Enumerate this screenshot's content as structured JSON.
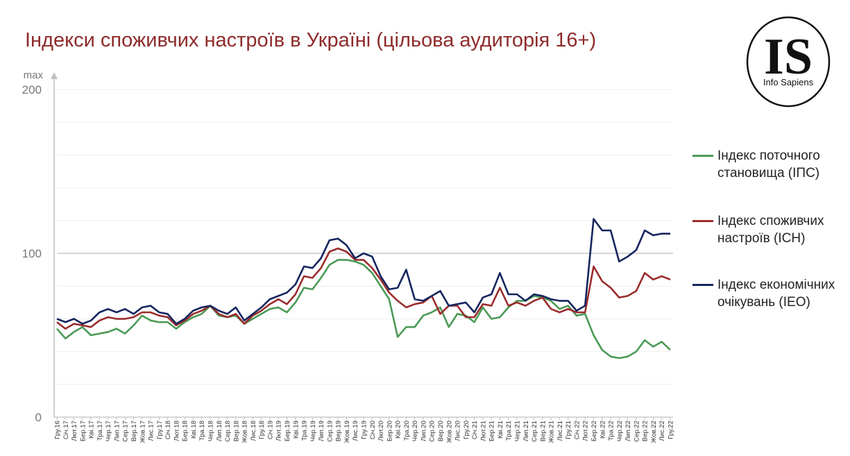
{
  "title": "Індекси споживчих настроїв в Україні (цільова аудиторія 16+)",
  "logo": {
    "mark": "IS",
    "name": "Info Sapiens"
  },
  "colors": {
    "ips": "#4a9a56",
    "ich": "#9b2c2c",
    "ieo": "#15255e",
    "grid": "#dcdcdc",
    "axis": "#bfbfbf"
  },
  "legend": [
    {
      "key": "ips",
      "label": "Індекс поточного становища (ІПС)"
    },
    {
      "key": "ich",
      "label": "Індекс споживчих настроїв (ІСН)"
    },
    {
      "key": "ieo",
      "label": "Індекс економічних очікувань (ІЕО)"
    }
  ],
  "chart_data": {
    "type": "line",
    "title": "Індекси споживчих настроїв в Україні (цільова аудиторія 16+)",
    "ylim": [
      0,
      200
    ],
    "yticks": [
      "0",
      "100",
      "200"
    ],
    "ymax_label": "max",
    "grid": true,
    "legend_position": "right",
    "x": [
      "Гру.16",
      "Січ.17",
      "Лют.17",
      "Бер.17",
      "Кві.17",
      "Тра.17",
      "Чер.17",
      "Лип.17",
      "Сер.17",
      "Вер.17",
      "Жов.17",
      "Лис.17",
      "Гру.17",
      "Січ.18",
      "Лют.18",
      "Бер.18",
      "Кві.18",
      "Тра.18",
      "Чер.18",
      "Лип.18",
      "Сер.18",
      "Вер.18",
      "Жов.18",
      "Лис.18",
      "Гру.18",
      "Січ.19",
      "Лют.19",
      "Бер.19",
      "Кві.19",
      "Тра.19",
      "Чер.19",
      "Лип.19",
      "Сер.19",
      "Вер.19",
      "Жов.19",
      "Лис.19",
      "Гру.19",
      "Січ.20",
      "Лют.20",
      "Бер.20",
      "Кві.20",
      "Тра.20",
      "Чер.20",
      "Лип.20",
      "Сер.20",
      "Вер.20",
      "Жов.20",
      "Лис.20",
      "Гру.20",
      "Січ.21",
      "Лют.21",
      "Бер.21",
      "Кві.21",
      "Тра.21",
      "Чер.21",
      "Лип.21",
      "Сер.21",
      "Вер.21",
      "Жов.21",
      "Лис.21",
      "Гру.21",
      "Січ.22",
      "Лют.22",
      "Бер.22",
      "Кві.22",
      "Тра.22",
      "Чер.22",
      "Лип.22",
      "Сер.22",
      "Вер.22",
      "Жов.22",
      "Лис.22",
      "Гру.22"
    ],
    "x_tick_labels": [
      "Гру.16",
      "Січ.17",
      "Лют.17",
      "Бер.17",
      "Кві.17",
      "Тра.17",
      "Чер.17",
      "Лип.17",
      "Сер.17",
      "Вер.17",
      "Жов.17",
      "Лис.17",
      "Гру.17",
      "Січ.18",
      "Лют.18",
      "Бер.18",
      "Кві.18",
      "Тра.18",
      "Чер.18",
      "Лип.18",
      "Сер.18",
      "Вер.18",
      "Жов.18",
      "Лис.18",
      "Гру.18",
      "Січ.19",
      "Лют.19",
      "Бер.19",
      "Кві.19",
      "Тра.19",
      "Чер.19",
      "Лип.19",
      "Сер.19",
      "Вер.19",
      "Жов.19",
      "Лис.19",
      "Гру.19",
      "Січ.20",
      "Лют.20",
      "Бер.20",
      "Кві.20",
      "Тра.20",
      "Чер.20",
      "Лип.20",
      "Сер.20",
      "Вер.20",
      "Жов.20",
      "Лис.20",
      "Гру.20",
      "Січ.21",
      "Лют.21",
      "Бер.21",
      "Кві.21",
      "Тра.21",
      "Чер.21",
      "Лип.21",
      "Сер.21",
      "Вер.21",
      "Жов.21",
      "Лис.21",
      "Гру.21",
      "Січ.22",
      "Лют.22",
      "Бер.22",
      "Кві.22",
      "Тра.22",
      "Чер.22",
      "Лип.22",
      "Сер.22",
      "Вер.22",
      "Жов.22",
      "Лис.22",
      "Гру.22"
    ],
    "series": [
      {
        "key": "ips",
        "name": "Індекс поточного становища (ІПС)",
        "values": [
          54,
          48,
          52,
          55,
          50,
          51,
          52,
          54,
          51,
          56,
          62,
          59,
          58,
          58,
          54,
          58,
          61,
          63,
          68,
          62,
          61,
          62,
          57,
          60,
          63,
          66,
          67,
          64,
          70,
          79,
          78,
          85,
          93,
          96,
          96,
          95,
          93,
          88,
          80,
          72,
          49,
          55,
          55,
          62,
          64,
          67,
          55,
          63,
          62,
          58,
          67,
          60,
          61,
          67,
          71,
          71,
          74,
          73,
          71,
          66,
          68,
          62,
          63,
          50,
          41,
          37,
          36,
          37,
          40,
          47,
          43,
          46,
          41
        ]
      },
      {
        "key": "ich",
        "name": "Індекс споживчих настроїв (ІСН)",
        "values": [
          58,
          54,
          57,
          56,
          55,
          59,
          61,
          60,
          60,
          61,
          64,
          64,
          62,
          61,
          56,
          59,
          63,
          65,
          68,
          63,
          61,
          63,
          57,
          62,
          65,
          69,
          72,
          69,
          75,
          86,
          85,
          91,
          101,
          103,
          101,
          96,
          96,
          91,
          84,
          76,
          71,
          67,
          69,
          70,
          74,
          63,
          68,
          68,
          61,
          61,
          69,
          68,
          79,
          68,
          70,
          68,
          71,
          73,
          66,
          64,
          66,
          64,
          64,
          92,
          83,
          79,
          73,
          74,
          77,
          88,
          84,
          86,
          84
        ]
      },
      {
        "key": "ieo",
        "name": "Індекс економічних очікувань (ІЕО)",
        "values": [
          60,
          58,
          60,
          57,
          59,
          64,
          66,
          64,
          66,
          63,
          67,
          68,
          64,
          63,
          57,
          60,
          65,
          67,
          68,
          65,
          63,
          67,
          59,
          63,
          67,
          72,
          74,
          76,
          81,
          92,
          91,
          97,
          108,
          109,
          105,
          97,
          100,
          98,
          86,
          78,
          79,
          90,
          72,
          71,
          74,
          77,
          68,
          69,
          70,
          64,
          73,
          75,
          88,
          75,
          75,
          71,
          75,
          74,
          72,
          71,
          71,
          65,
          68,
          121,
          114,
          114,
          95,
          98,
          102,
          114,
          111,
          112,
          112
        ]
      }
    ]
  }
}
